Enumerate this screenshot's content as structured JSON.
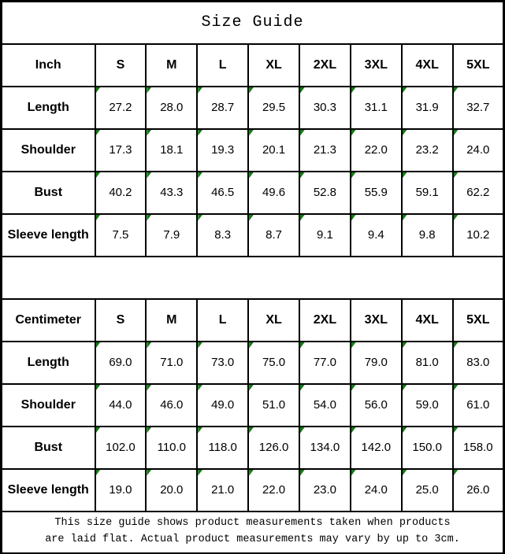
{
  "page": {
    "title": "Size Guide"
  },
  "sizes": [
    "S",
    "M",
    "L",
    "XL",
    "2XL",
    "3XL",
    "4XL",
    "5XL"
  ],
  "tables": [
    {
      "unit": "Inch",
      "rows": [
        {
          "label": "Length",
          "values": [
            "27.2",
            "28.0",
            "28.7",
            "29.5",
            "30.3",
            "31.1",
            "31.9",
            "32.7"
          ]
        },
        {
          "label": "Shoulder",
          "values": [
            "17.3",
            "18.1",
            "19.3",
            "20.1",
            "21.3",
            "22.0",
            "23.2",
            "24.0"
          ]
        },
        {
          "label": "Bust",
          "values": [
            "40.2",
            "43.3",
            "46.5",
            "49.6",
            "52.8",
            "55.9",
            "59.1",
            "62.2"
          ]
        },
        {
          "label": "Sleeve length",
          "values": [
            "7.5",
            "7.9",
            "8.3",
            "8.7",
            "9.1",
            "9.4",
            "9.8",
            "10.2"
          ]
        }
      ]
    },
    {
      "unit": "Centimeter",
      "rows": [
        {
          "label": "Length",
          "values": [
            "69.0",
            "71.0",
            "73.0",
            "75.0",
            "77.0",
            "79.0",
            "81.0",
            "83.0"
          ]
        },
        {
          "label": "Shoulder",
          "values": [
            "44.0",
            "46.0",
            "49.0",
            "51.0",
            "54.0",
            "56.0",
            "59.0",
            "61.0"
          ]
        },
        {
          "label": "Bust",
          "values": [
            "102.0",
            "110.0",
            "118.0",
            "126.0",
            "134.0",
            "142.0",
            "150.0",
            "158.0"
          ]
        },
        {
          "label": "Sleeve length",
          "values": [
            "19.0",
            "20.0",
            "21.0",
            "22.0",
            "23.0",
            "24.0",
            "25.0",
            "26.0"
          ]
        }
      ]
    }
  ],
  "footer": {
    "line1": "This size guide shows product measurements taken when products",
    "line2": "are laid flat. Actual product measurements may vary by up to 3cm."
  },
  "colors": {
    "marker_green": "#0f7d0f",
    "border_black": "#000000",
    "background": "#ffffff",
    "text": "#000000"
  }
}
